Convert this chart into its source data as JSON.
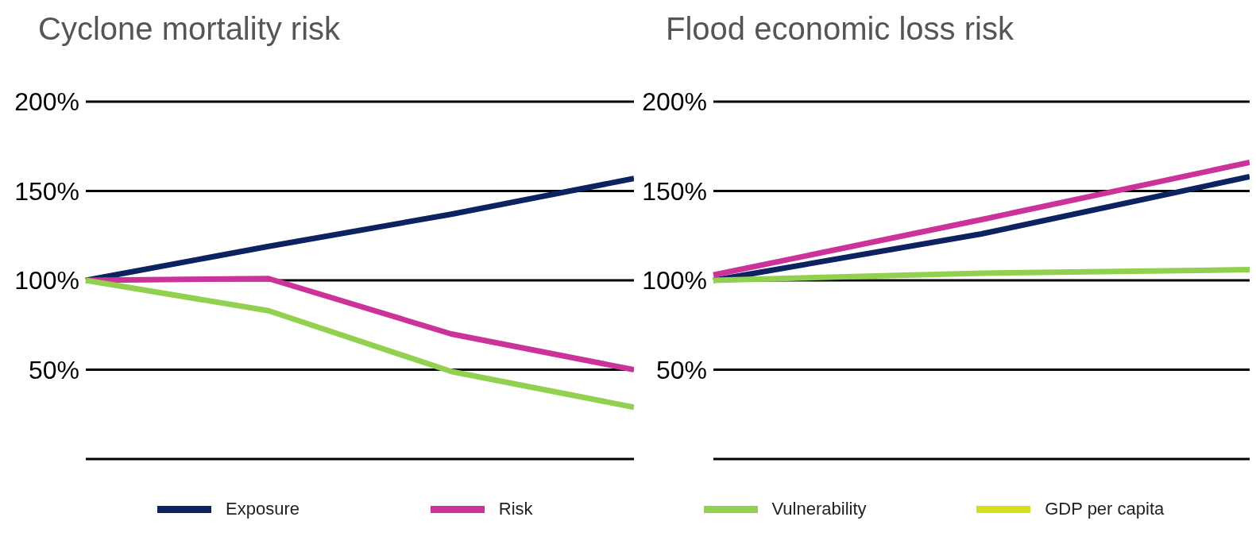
{
  "chart_data": [
    {
      "type": "line",
      "title": "Cyclone mortality risk",
      "categories": [
        null,
        null,
        null,
        null
      ],
      "series": [
        {
          "name": "Exposure",
          "color": "#0d2260",
          "values": [
            100,
            119,
            137,
            157
          ]
        },
        {
          "name": "Risk",
          "color": "#cc3399",
          "values": [
            100,
            101,
            70,
            50
          ]
        },
        {
          "name": "Vulnerability",
          "color": "#92d050",
          "values": [
            100,
            83,
            49,
            29
          ]
        },
        {
          "name": "GDP per capita",
          "color": "#d4e01c",
          "values": [
            null,
            null,
            null,
            null
          ]
        }
      ],
      "ylim": [
        0,
        200
      ],
      "yticks": [
        {
          "value": 0,
          "label": null
        },
        {
          "value": 50,
          "label": "50%"
        },
        {
          "value": 100,
          "label": "100%"
        },
        {
          "value": 150,
          "label": "150%"
        },
        {
          "value": 200,
          "label": "200%"
        }
      ],
      "grid": "y",
      "tick_labels": "y",
      "legend": "bottom",
      "marker": "none",
      "line_style": "solid"
    },
    {
      "type": "line",
      "title": "Flood economic loss risk",
      "categories": [
        null,
        null,
        null
      ],
      "series": [
        {
          "color": "#0d2260",
          "values": [
            100,
            126,
            158
          ]
        },
        {
          "color": "#cc3399",
          "values": [
            103,
            134,
            166
          ]
        },
        {
          "color": "#92d050",
          "values": [
            100,
            104,
            106
          ]
        }
      ],
      "ylim": [
        0,
        200
      ],
      "yticks": [
        {
          "value": 0,
          "label": null
        },
        {
          "value": 50,
          "label": "50%"
        },
        {
          "value": 100,
          "label": "100%"
        },
        {
          "value": 150,
          "label": "150%"
        },
        {
          "value": 200,
          "label": "200%"
        }
      ],
      "grid": "y",
      "tick_labels": "y",
      "marker": "none",
      "line_style": "solid"
    }
  ]
}
